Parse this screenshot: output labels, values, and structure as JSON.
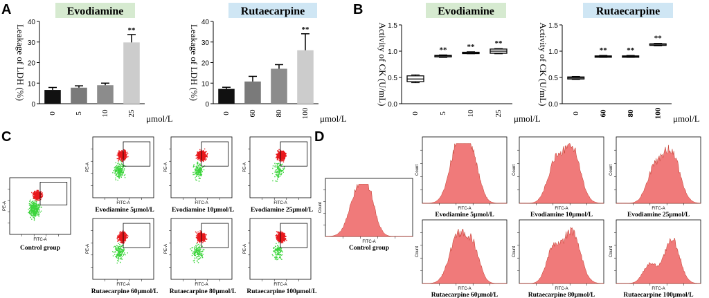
{
  "panels": {
    "A": "A",
    "B": "B",
    "C": "C",
    "D": "D"
  },
  "colors": {
    "evo_bg": "#d6ead0",
    "ruta_bg": "#cfe6f4",
    "bar_0": "#111111",
    "bar_1": "#7a7a7a",
    "bar_2": "#8c8c8c",
    "bar_3": "#cccccc",
    "red": "#e8171b",
    "green": "#3cd43c",
    "hist_fill": "#f07a7a",
    "hist_edge": "#c0392b"
  },
  "chart_data": [
    {
      "id": "A1",
      "type": "bar",
      "title": "Evodiamine",
      "ylabel": "Leakage of LDH (%)",
      "xunit": "μmol/L",
      "categories": [
        "0",
        "5",
        "10",
        "25"
      ],
      "values": [
        6.7,
        7.8,
        9.0,
        29.8
      ],
      "errors": [
        1.2,
        0.9,
        1.0,
        3.8
      ],
      "significance": [
        "",
        "",
        "",
        "**"
      ],
      "ylim": [
        0,
        40
      ],
      "yticks": [
        "0",
        "10",
        "20",
        "30",
        "40"
      ]
    },
    {
      "id": "A2",
      "type": "bar",
      "title": "Rutaecarpine",
      "ylabel": "Leakage of LDH (%)",
      "xunit": "μmol/L",
      "categories": [
        "0",
        "60",
        "80",
        "100"
      ],
      "values": [
        7.2,
        10.8,
        17.0,
        26.0
      ],
      "errors": [
        0.8,
        2.5,
        2.0,
        8.0
      ],
      "significance": [
        "",
        "",
        "",
        "**"
      ],
      "ylim": [
        0,
        40
      ],
      "yticks": [
        "0",
        "10",
        "20",
        "30",
        "40"
      ]
    },
    {
      "id": "B1",
      "type": "box",
      "title": "Evodiamine",
      "ylabel": "Activity of CK (U/mL)",
      "xunit": "μmol/L",
      "categories": [
        "0",
        "5",
        "10",
        "25"
      ],
      "boxes": [
        {
          "min": 0.4,
          "q1": 0.42,
          "median": 0.47,
          "q3": 0.53,
          "max": 0.55
        },
        {
          "min": 0.88,
          "q1": 0.89,
          "median": 0.91,
          "q3": 0.92,
          "max": 0.93
        },
        {
          "min": 0.95,
          "q1": 0.96,
          "median": 0.97,
          "q3": 0.98,
          "max": 0.99
        },
        {
          "min": 0.95,
          "q1": 0.96,
          "median": 1.0,
          "q3": 1.04,
          "max": 1.05
        }
      ],
      "significance": [
        "",
        "**",
        "**",
        "**"
      ],
      "ylim": [
        0,
        1.5
      ],
      "yticks": [
        "0.0",
        "0.5",
        "1.0",
        "1.5"
      ]
    },
    {
      "id": "B2",
      "type": "box",
      "title": "Rutaecarpine",
      "ylabel": "Activity of CK (U/mL)",
      "xunit": "μmol/L",
      "categories": [
        "0",
        "60",
        "80",
        "100"
      ],
      "boxes": [
        {
          "min": 0.46,
          "q1": 0.47,
          "median": 0.49,
          "q3": 0.51,
          "max": 0.52
        },
        {
          "min": 0.88,
          "q1": 0.89,
          "median": 0.9,
          "q3": 0.91,
          "max": 0.92
        },
        {
          "min": 0.88,
          "q1": 0.89,
          "median": 0.9,
          "q3": 0.91,
          "max": 0.92
        },
        {
          "min": 1.1,
          "q1": 1.11,
          "median": 1.13,
          "q3": 1.14,
          "max": 1.15
        }
      ],
      "significance": [
        "",
        "**",
        "**",
        "**"
      ],
      "ylim": [
        0,
        1.5
      ],
      "yticks": [
        "0.0",
        "0.5",
        "1.0",
        "1.5"
      ]
    },
    {
      "id": "C",
      "type": "scatter",
      "xlabel": "FITC-A",
      "ylabel": "PE-A",
      "plots": [
        {
          "label": "Control group",
          "density": 0.55,
          "shift": 0.0
        },
        {
          "label": "Evodiamine 5μmol/L",
          "density": 0.75,
          "shift": 0.1
        },
        {
          "label": "Evodiamine 10μmol/L",
          "density": 0.8,
          "shift": 0.15
        },
        {
          "label": "Evodiamine 25μmol/L",
          "density": 0.85,
          "shift": 0.2
        },
        {
          "label": "Rutaecarpine 60μmol/L",
          "density": 0.75,
          "shift": 0.1
        },
        {
          "label": "Rutaecarpine 80μmol/L",
          "density": 0.78,
          "shift": 0.12
        },
        {
          "label": "Rutaecarpine 100μmol/L",
          "density": 0.82,
          "shift": 0.18
        }
      ]
    },
    {
      "id": "D",
      "type": "area",
      "xlabel": "FITC-A",
      "ylabel": "Count",
      "plots": [
        {
          "label": "Control group",
          "peaks": [
            [
              0.38,
              0.1,
              0.9
            ],
            [
              0.5,
              0.08,
              0.55
            ]
          ]
        },
        {
          "label": "Evodiamine 5μmol/L",
          "peaks": [
            [
              0.42,
              0.1,
              0.95
            ],
            [
              0.58,
              0.09,
              0.75
            ]
          ]
        },
        {
          "label": "Evodiamine 10μmol/L",
          "peaks": [
            [
              0.42,
              0.09,
              0.65
            ],
            [
              0.62,
              0.1,
              0.95
            ]
          ]
        },
        {
          "label": "Evodiamine 25μmol/L",
          "peaks": [
            [
              0.45,
              0.09,
              0.55
            ],
            [
              0.65,
              0.1,
              0.9
            ]
          ]
        },
        {
          "label": "Rutaecarpine 60μmol/L",
          "peaks": [
            [
              0.42,
              0.1,
              0.85
            ],
            [
              0.6,
              0.08,
              0.6
            ]
          ]
        },
        {
          "label": "Rutaecarpine 80μmol/L",
          "peaks": [
            [
              0.4,
              0.08,
              0.6
            ],
            [
              0.62,
              0.1,
              0.95
            ]
          ]
        },
        {
          "label": "Rutaecarpine 100μmol/L",
          "peaks": [
            [
              0.4,
              0.08,
              0.35
            ],
            [
              0.66,
              0.09,
              0.8
            ]
          ]
        }
      ]
    }
  ]
}
